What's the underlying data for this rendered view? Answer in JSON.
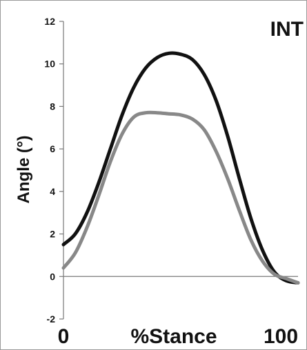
{
  "chart_data": {
    "type": "line",
    "title": "INT",
    "xlabel": "%Stance",
    "ylabel": "Angle (°)",
    "xlim": [
      0,
      100
    ],
    "ylim": [
      -2,
      12
    ],
    "y_ticks": [
      -2,
      0,
      2,
      4,
      6,
      8,
      10,
      12
    ],
    "x_tick_labels": [
      "0",
      "100"
    ],
    "grid": false,
    "legend": "none",
    "series": [
      {
        "color": "#111111",
        "x": [
          0,
          5,
          10,
          15,
          20,
          25,
          30,
          35,
          40,
          45,
          50,
          55,
          60,
          65,
          70,
          75,
          80,
          85,
          90,
          95,
          100
        ],
        "y": [
          1.5,
          2.0,
          3.0,
          4.4,
          6.0,
          7.6,
          8.9,
          9.8,
          10.3,
          10.5,
          10.45,
          10.2,
          9.5,
          8.3,
          6.6,
          4.6,
          2.7,
          1.2,
          0.2,
          -0.2,
          -0.3
        ]
      },
      {
        "color": "#888888",
        "x": [
          0,
          5,
          10,
          15,
          20,
          25,
          30,
          35,
          40,
          45,
          50,
          55,
          60,
          65,
          70,
          75,
          80,
          85,
          90,
          95,
          100
        ],
        "y": [
          0.4,
          1.1,
          2.3,
          3.8,
          5.4,
          6.7,
          7.5,
          7.7,
          7.7,
          7.65,
          7.6,
          7.4,
          6.9,
          5.9,
          4.6,
          3.1,
          1.7,
          0.7,
          0.1,
          -0.1,
          -0.3
        ]
      }
    ]
  }
}
